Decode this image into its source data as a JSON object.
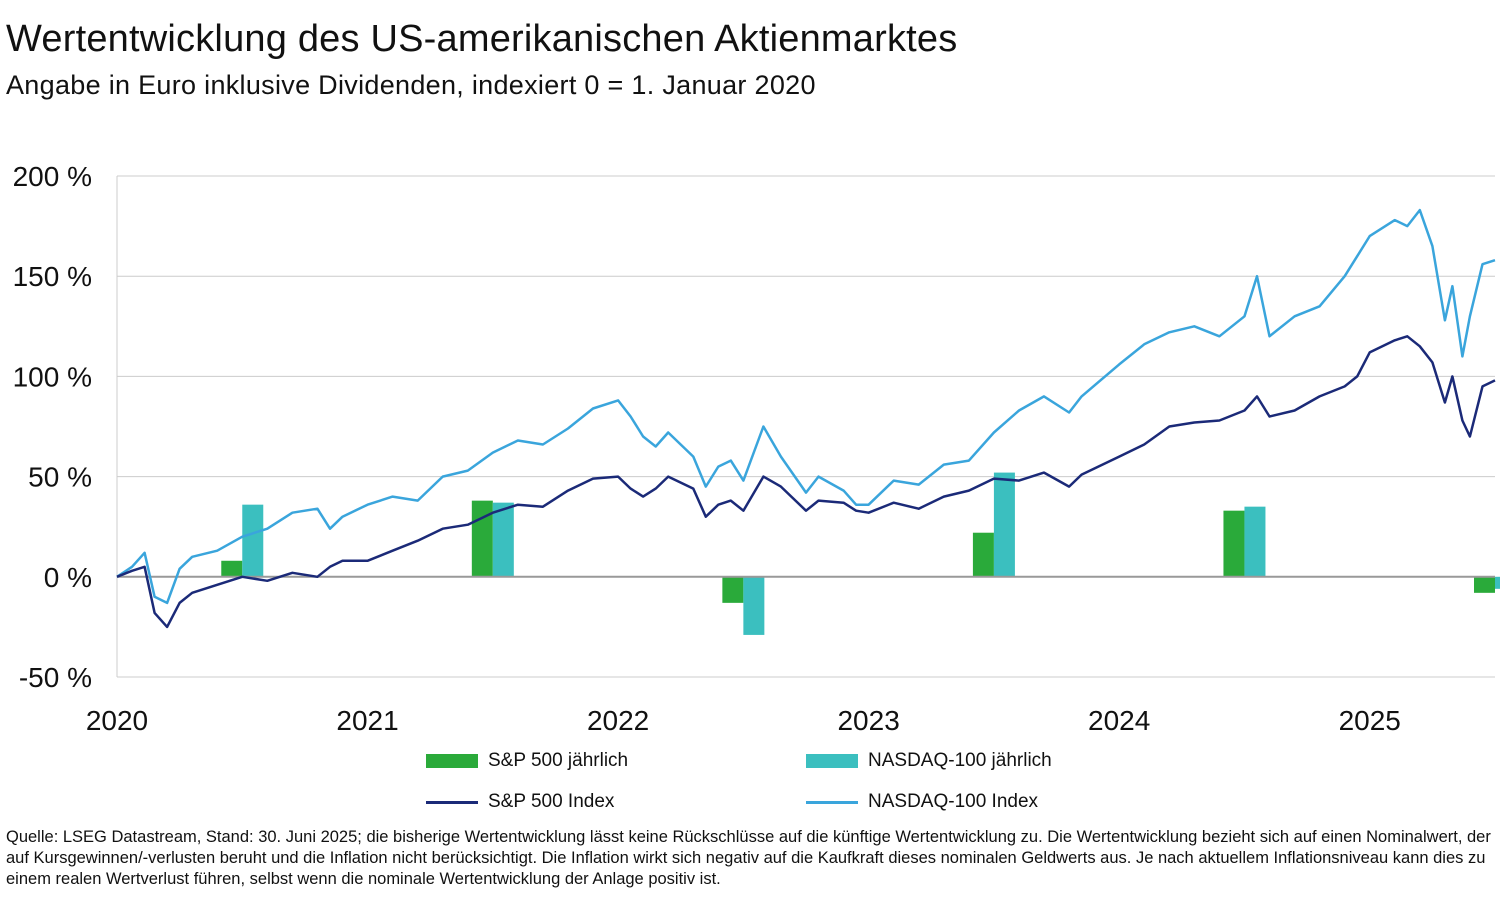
{
  "header": {
    "title": "Wertentwicklung des US-amerikanischen Aktienmarktes",
    "subtitle": "Angabe in Euro inklusive Dividenden, indexiert 0 = 1. Januar 2020"
  },
  "footer": {
    "source_note": "Quelle: LSEG Datastream, Stand: 30. Juni 2025; die bisherige Wertentwicklung lässt keine Rückschlüsse auf die künftige Wertentwicklung zu. Die Wertentwicklung bezieht sich auf einen Nominalwert, der auf Kursgewinnen/-verlusten beruht und die Inflation nicht berücksichtigt. Die Inflation wirkt sich negativ auf die Kaufkraft dieses nominalen Geldwerts aus. Je nach aktuellem Inflationsniveau kann dies zu einem realen Wertverlust führen, selbst wenn die nominale Wertentwicklung der Anlage positiv ist."
  },
  "legend": {
    "sp_bar": "S&P 500 jährlich",
    "nasdaq_bar": "NASDAQ-100 jährlich",
    "sp_line": "S&P 500 Index",
    "nasdaq_line": "NASDAQ-100 Index"
  },
  "colors": {
    "sp_bar": "#2aaa3a",
    "nasdaq_bar": "#3bbfbf",
    "sp_line": "#1b2a78",
    "nasdaq_line": "#3aa5dc",
    "grid": "#cccccc",
    "zero_line": "#999999"
  },
  "chart_data": {
    "type": "line",
    "title": "Wertentwicklung des US-amerikanischen Aktienmarktes",
    "subtitle": "Angabe in Euro inklusive Dividenden, indexiert 0 = 1. Januar 2020",
    "ylim": [
      -50,
      200
    ],
    "yticks": [
      -50,
      0,
      50,
      100,
      150,
      200
    ],
    "ytick_labels": [
      "-50 %",
      "0 %",
      "50 %",
      "100 %",
      "150 %",
      "200 %"
    ],
    "xlim": [
      2020.0,
      2025.5
    ],
    "xticks": [
      2020,
      2021,
      2022,
      2023,
      2024,
      2025
    ],
    "xtick_labels": [
      "2020",
      "2021",
      "2022",
      "2023",
      "2024",
      "2025"
    ],
    "grid": "horizontal",
    "legend_position": "bottom",
    "bars": [
      {
        "name": "S&P 500 jährlich",
        "x": [
          2020,
          2021,
          2022,
          2023,
          2024,
          2025
        ],
        "values": [
          8,
          38,
          -13,
          22,
          33,
          -8
        ]
      },
      {
        "name": "NASDAQ-100 jährlich",
        "x": [
          2020,
          2021,
          2022,
          2023,
          2024,
          2025
        ],
        "values": [
          36,
          37,
          -29,
          52,
          35,
          -6
        ]
      }
    ],
    "series": [
      {
        "name": "S&P 500 Index",
        "x": [
          2020.0,
          2020.06,
          2020.11,
          2020.15,
          2020.2,
          2020.25,
          2020.3,
          2020.4,
          2020.5,
          2020.6,
          2020.7,
          2020.8,
          2020.85,
          2020.9,
          2021.0,
          2021.1,
          2021.2,
          2021.3,
          2021.4,
          2021.5,
          2021.6,
          2021.7,
          2021.8,
          2021.9,
          2022.0,
          2022.05,
          2022.1,
          2022.15,
          2022.2,
          2022.3,
          2022.35,
          2022.4,
          2022.45,
          2022.5,
          2022.58,
          2022.65,
          2022.75,
          2022.8,
          2022.9,
          2022.95,
          2023.0,
          2023.1,
          2023.2,
          2023.3,
          2023.4,
          2023.5,
          2023.6,
          2023.7,
          2023.8,
          2023.85,
          2024.0,
          2024.1,
          2024.2,
          2024.3,
          2024.4,
          2024.5,
          2024.55,
          2024.6,
          2024.7,
          2024.8,
          2024.9,
          2024.95,
          2025.0,
          2025.1,
          2025.15,
          2025.2,
          2025.25,
          2025.3,
          2025.33,
          2025.37,
          2025.4,
          2025.45,
          2025.5
        ],
        "values": [
          0,
          3,
          5,
          -18,
          -25,
          -13,
          -8,
          -4,
          0,
          -2,
          2,
          0,
          5,
          8,
          8,
          13,
          18,
          24,
          26,
          32,
          36,
          35,
          43,
          49,
          50,
          44,
          40,
          44,
          50,
          44,
          30,
          36,
          38,
          33,
          50,
          45,
          33,
          38,
          37,
          33,
          32,
          37,
          34,
          40,
          43,
          49,
          48,
          52,
          45,
          51,
          60,
          66,
          75,
          77,
          78,
          83,
          90,
          80,
          83,
          90,
          95,
          100,
          112,
          118,
          120,
          115,
          107,
          87,
          100,
          78,
          70,
          95,
          98
        ]
      },
      {
        "name": "NASDAQ-100 Index",
        "x": [
          2020.0,
          2020.06,
          2020.11,
          2020.15,
          2020.2,
          2020.25,
          2020.3,
          2020.4,
          2020.5,
          2020.6,
          2020.7,
          2020.8,
          2020.85,
          2020.9,
          2021.0,
          2021.1,
          2021.2,
          2021.3,
          2021.4,
          2021.5,
          2021.6,
          2021.7,
          2021.8,
          2021.9,
          2022.0,
          2022.05,
          2022.1,
          2022.15,
          2022.2,
          2022.3,
          2022.35,
          2022.4,
          2022.45,
          2022.5,
          2022.58,
          2022.65,
          2022.75,
          2022.8,
          2022.9,
          2022.95,
          2023.0,
          2023.1,
          2023.2,
          2023.3,
          2023.4,
          2023.5,
          2023.6,
          2023.7,
          2023.8,
          2023.85,
          2024.0,
          2024.1,
          2024.2,
          2024.3,
          2024.4,
          2024.5,
          2024.55,
          2024.6,
          2024.7,
          2024.8,
          2024.9,
          2024.95,
          2025.0,
          2025.1,
          2025.15,
          2025.2,
          2025.25,
          2025.3,
          2025.33,
          2025.37,
          2025.4,
          2025.45,
          2025.5
        ],
        "values": [
          0,
          5,
          12,
          -10,
          -13,
          4,
          10,
          13,
          20,
          24,
          32,
          34,
          24,
          30,
          36,
          40,
          38,
          50,
          53,
          62,
          68,
          66,
          74,
          84,
          88,
          80,
          70,
          65,
          72,
          60,
          45,
          55,
          58,
          48,
          75,
          60,
          42,
          50,
          43,
          36,
          36,
          48,
          46,
          56,
          58,
          72,
          83,
          90,
          82,
          90,
          106,
          116,
          122,
          125,
          120,
          130,
          150,
          120,
          130,
          135,
          150,
          160,
          170,
          178,
          175,
          183,
          165,
          128,
          145,
          110,
          130,
          156,
          158
        ]
      }
    ]
  }
}
